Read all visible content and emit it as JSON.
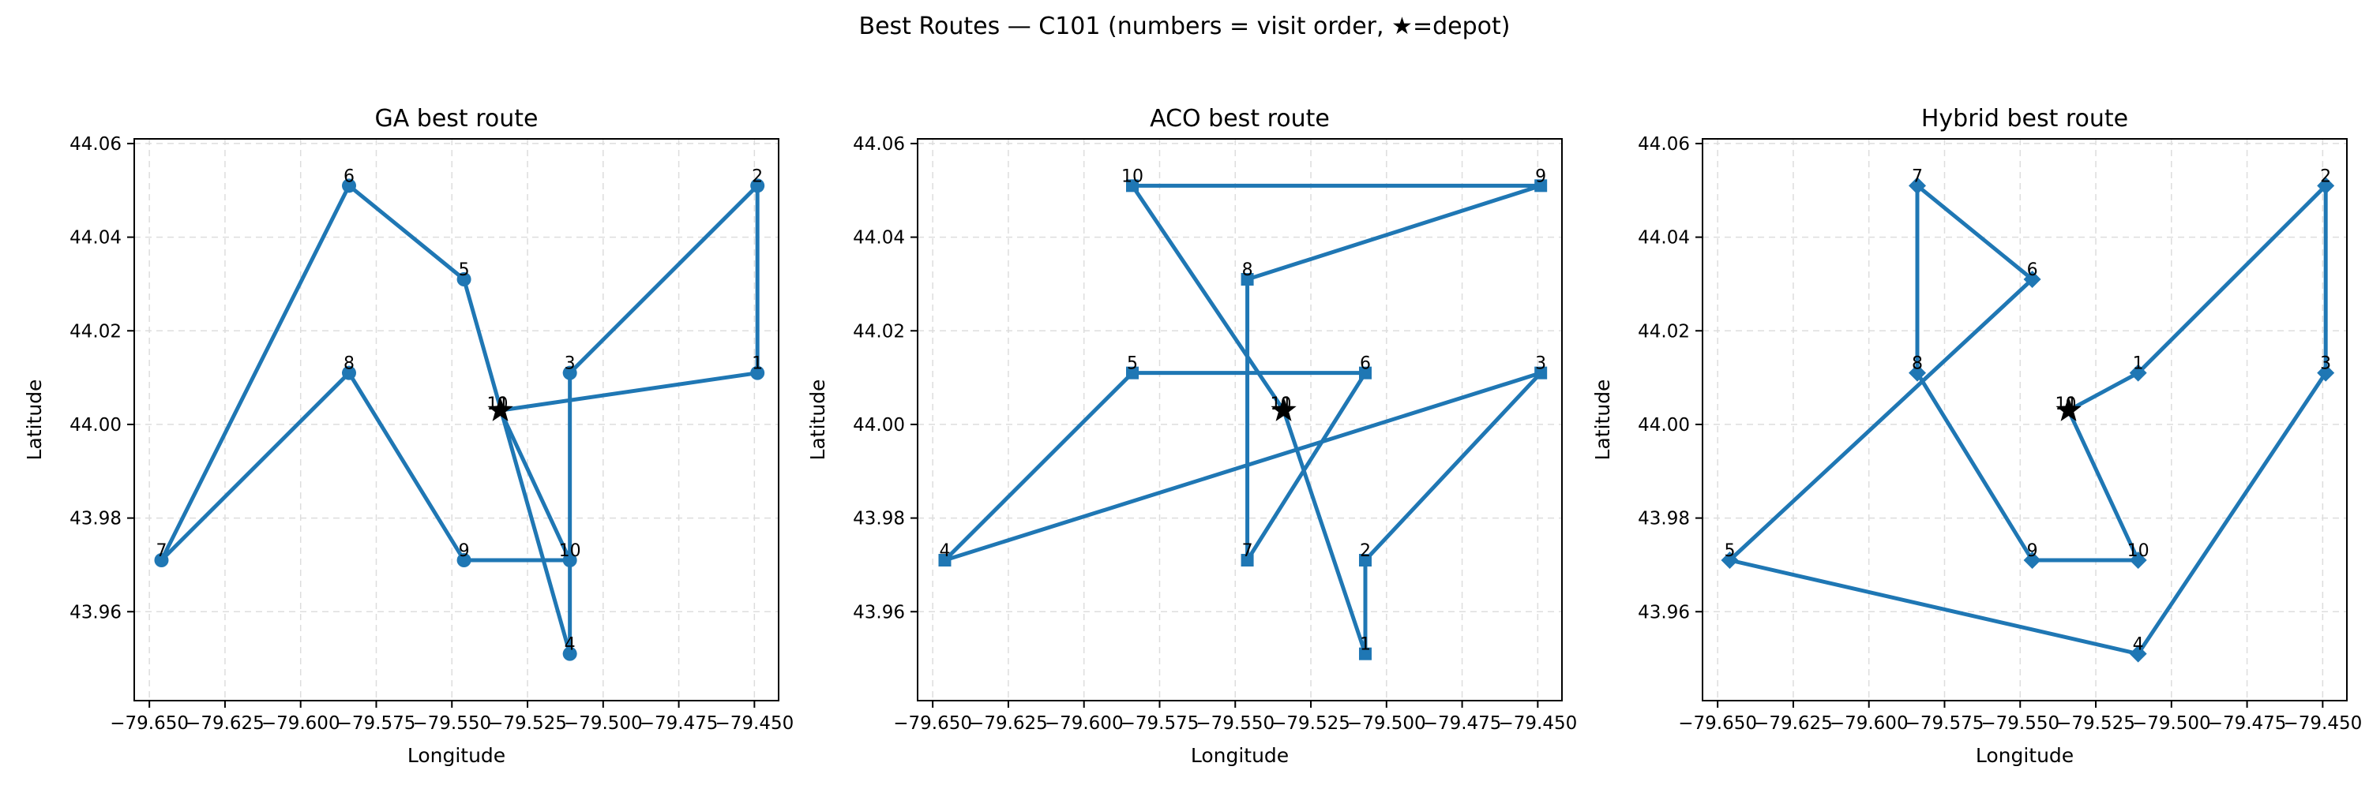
{
  "figure": {
    "suptitle": "Best Routes — C101 (numbers = visit order, ★=depot)"
  },
  "colors": {
    "route": "#1f77b4",
    "depot": "#000000",
    "grid": "#dddddd"
  },
  "chart_data": [
    {
      "type": "line",
      "title": "GA best route",
      "xlabel": "Longitude",
      "ylabel": "Latitude",
      "marker": "circle",
      "xlim": [
        -79.655,
        -79.442
      ],
      "ylim": [
        43.941,
        44.061
      ],
      "xticks": [
        -79.65,
        -79.625,
        -79.6,
        -79.575,
        -79.55,
        -79.525,
        -79.5,
        -79.475,
        -79.45
      ],
      "xtick_labels": [
        "−79.650",
        "−79.625",
        "−79.600",
        "−79.575",
        "−79.550",
        "−79.525",
        "−79.500",
        "−79.475",
        "−79.450"
      ],
      "yticks": [
        43.96,
        43.98,
        44.0,
        44.02,
        44.04,
        44.06
      ],
      "ytick_labels": [
        "43.96",
        "43.98",
        "44.00",
        "44.02",
        "44.04",
        "44.06"
      ],
      "grid": true,
      "depot": {
        "x": -79.534,
        "y": 44.003,
        "labels": [
          "0",
          "11"
        ]
      },
      "route": [
        {
          "label": "1",
          "x": -79.449,
          "y": 44.011
        },
        {
          "label": "2",
          "x": -79.449,
          "y": 44.051
        },
        {
          "label": "3",
          "x": -79.511,
          "y": 44.011
        },
        {
          "label": "4",
          "x": -79.511,
          "y": 43.951
        },
        {
          "label": "5",
          "x": -79.546,
          "y": 44.031
        },
        {
          "label": "6",
          "x": -79.584,
          "y": 44.051
        },
        {
          "label": "7",
          "x": -79.646,
          "y": 43.971
        },
        {
          "label": "8",
          "x": -79.584,
          "y": 44.011
        },
        {
          "label": "9",
          "x": -79.546,
          "y": 43.971
        },
        {
          "label": "10",
          "x": -79.511,
          "y": 43.971
        }
      ]
    },
    {
      "type": "line",
      "title": "ACO best route",
      "xlabel": "Longitude",
      "ylabel": "Latitude",
      "marker": "square",
      "xlim": [
        -79.655,
        -79.442
      ],
      "ylim": [
        43.941,
        44.061
      ],
      "xticks": [
        -79.65,
        -79.625,
        -79.6,
        -79.575,
        -79.55,
        -79.525,
        -79.5,
        -79.475,
        -79.45
      ],
      "xtick_labels": [
        "−79.650",
        "−79.625",
        "−79.600",
        "−79.575",
        "−79.550",
        "−79.525",
        "−79.500",
        "−79.475",
        "−79.450"
      ],
      "yticks": [
        43.96,
        43.98,
        44.0,
        44.02,
        44.04,
        44.06
      ],
      "ytick_labels": [
        "43.96",
        "43.98",
        "44.00",
        "44.02",
        "44.04",
        "44.06"
      ],
      "grid": true,
      "depot": {
        "x": -79.534,
        "y": 44.003,
        "labels": [
          "0",
          "11"
        ]
      },
      "route": [
        {
          "label": "1",
          "x": -79.507,
          "y": 43.951
        },
        {
          "label": "2",
          "x": -79.507,
          "y": 43.971
        },
        {
          "label": "3",
          "x": -79.449,
          "y": 44.011
        },
        {
          "label": "4",
          "x": -79.646,
          "y": 43.971
        },
        {
          "label": "5",
          "x": -79.584,
          "y": 44.011
        },
        {
          "label": "6",
          "x": -79.507,
          "y": 44.011
        },
        {
          "label": "7",
          "x": -79.546,
          "y": 43.971
        },
        {
          "label": "8",
          "x": -79.546,
          "y": 44.031
        },
        {
          "label": "9",
          "x": -79.449,
          "y": 44.051
        },
        {
          "label": "10",
          "x": -79.584,
          "y": 44.051
        }
      ]
    },
    {
      "type": "line",
      "title": "Hybrid best route",
      "xlabel": "Longitude",
      "ylabel": "Latitude",
      "marker": "diamond",
      "xlim": [
        -79.655,
        -79.442
      ],
      "ylim": [
        43.941,
        44.061
      ],
      "xticks": [
        -79.65,
        -79.625,
        -79.6,
        -79.575,
        -79.55,
        -79.525,
        -79.5,
        -79.475,
        -79.45
      ],
      "xtick_labels": [
        "−79.650",
        "−79.625",
        "−79.600",
        "−79.575",
        "−79.550",
        "−79.525",
        "−79.500",
        "−79.475",
        "−79.450"
      ],
      "yticks": [
        43.96,
        43.98,
        44.0,
        44.02,
        44.04,
        44.06
      ],
      "ytick_labels": [
        "43.96",
        "43.98",
        "44.00",
        "44.02",
        "44.04",
        "44.06"
      ],
      "grid": true,
      "depot": {
        "x": -79.534,
        "y": 44.003,
        "labels": [
          "0",
          "11"
        ]
      },
      "route": [
        {
          "label": "1",
          "x": -79.511,
          "y": 44.011
        },
        {
          "label": "2",
          "x": -79.449,
          "y": 44.051
        },
        {
          "label": "3",
          "x": -79.449,
          "y": 44.011
        },
        {
          "label": "4",
          "x": -79.511,
          "y": 43.951
        },
        {
          "label": "5",
          "x": -79.646,
          "y": 43.971
        },
        {
          "label": "6",
          "x": -79.546,
          "y": 44.031
        },
        {
          "label": "7",
          "x": -79.584,
          "y": 44.051
        },
        {
          "label": "8",
          "x": -79.584,
          "y": 44.011
        },
        {
          "label": "9",
          "x": -79.546,
          "y": 43.971
        },
        {
          "label": "10",
          "x": -79.511,
          "y": 43.971
        }
      ]
    }
  ]
}
